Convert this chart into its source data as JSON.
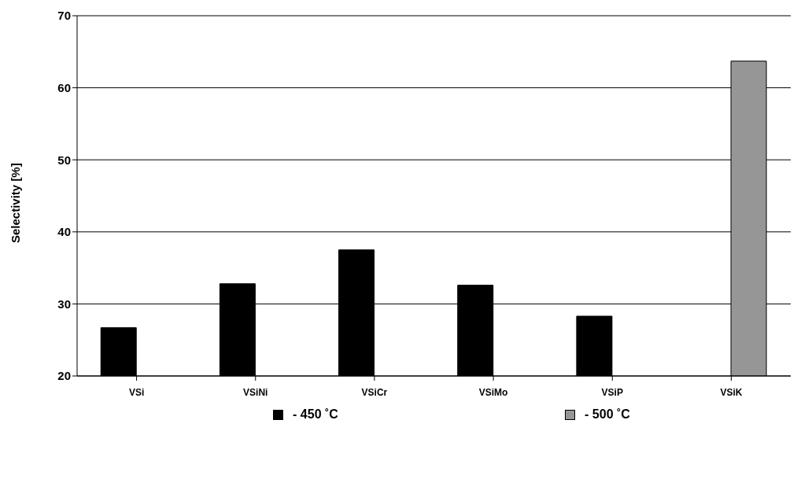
{
  "chart_data": {
    "type": "bar",
    "ylabel": "Selectivity [%]",
    "categories": [
      "VSi",
      "VSiNi",
      "VSiCr",
      "VSiMo",
      "VSiP",
      "VSiK"
    ],
    "series": [
      {
        "name": "- 450 ˚C",
        "color": "#000000",
        "values": [
          26.7,
          32.8,
          37.5,
          32.6,
          28.3,
          null
        ]
      },
      {
        "name": "- 500 ˚C",
        "color": "#969696",
        "values": [
          null,
          null,
          null,
          null,
          null,
          63.7
        ]
      }
    ],
    "ylim": [
      20,
      70
    ],
    "yticks": [
      20,
      30,
      40,
      50,
      60,
      70
    ],
    "grid": "y",
    "legend": "bottom"
  }
}
